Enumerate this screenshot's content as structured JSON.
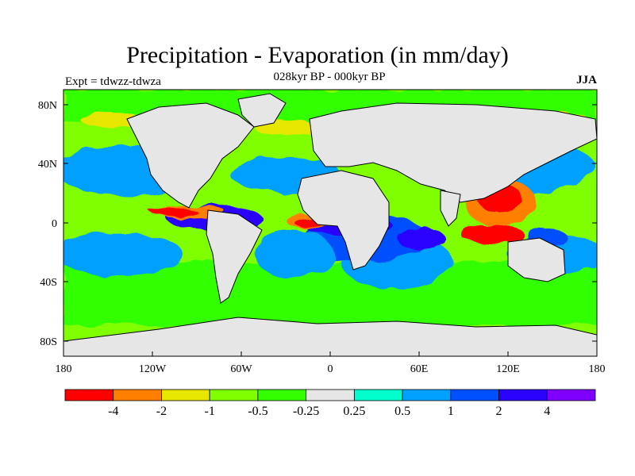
{
  "title": "Precipitation - Evaporation (in mm/day)",
  "subtitle": "028kyr BP - 000kyr BP",
  "experiment_label": "Expt = tdwzz-tdwza",
  "season_label": "JJA",
  "lat_ticks": [
    "80N",
    "40N",
    "0",
    "40S",
    "80S"
  ],
  "lon_ticks": [
    "180",
    "120W",
    "60W",
    "0",
    "60E",
    "120E",
    "180"
  ],
  "colorbar": {
    "labels": [
      "-4",
      "-2",
      "-1",
      "-0.5",
      "-0.25",
      "0.25",
      "0.5",
      "1",
      "2",
      "4"
    ],
    "colors": [
      "#ff0000",
      "#ff7f00",
      "#e6e600",
      "#80ff00",
      "#33ff00",
      "#e6e6e6",
      "#00ffcc",
      "#00a0ff",
      "#0050ff",
      "#2a00ff",
      "#8000ff"
    ]
  },
  "colors": {
    "ocean_neutral": "#e6e6e6",
    "coast": "#000000"
  }
}
